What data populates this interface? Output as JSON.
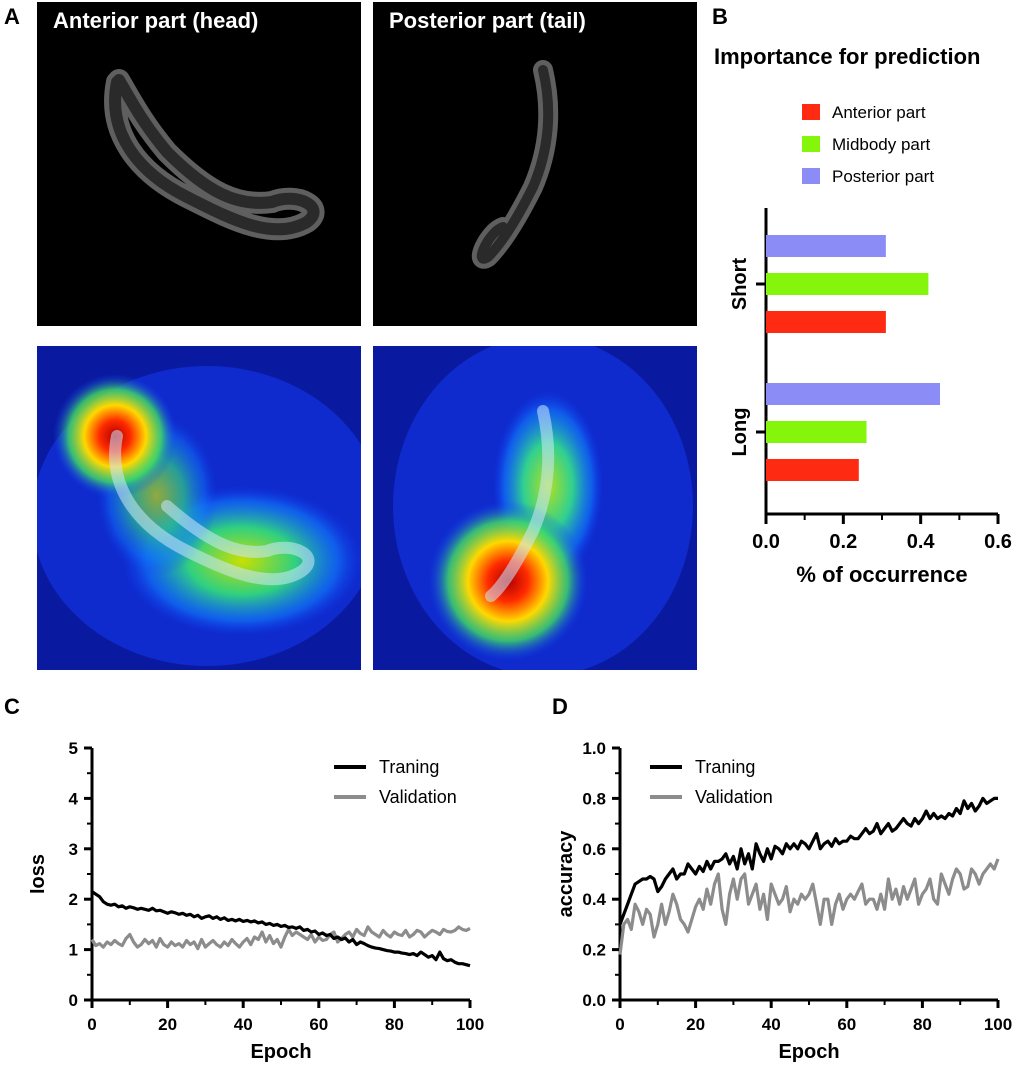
{
  "panels": {
    "a": "A",
    "b": "B",
    "c": "C",
    "d": "D"
  },
  "panel_a": {
    "title_left": "Anterior part (head)",
    "title_right": "Posterior part (tail)"
  },
  "colors": {
    "anterior": "#ff2a12",
    "midbody": "#86f50c",
    "posterior": "#8c8cf7",
    "training": "#000000",
    "validation": "#8c8c8c"
  },
  "chart_data": [
    {
      "id": "importance",
      "type": "bar",
      "orientation": "horizontal",
      "title": "Importance for prediction",
      "xlabel": "% of occurrence",
      "ylabel": "",
      "xlim": [
        0,
        0.6
      ],
      "xticks": [
        "0.0",
        "0.2",
        "0.4",
        "0.6"
      ],
      "xtick_values": [
        0,
        0.2,
        0.4,
        0.6
      ],
      "categories": [
        "Short",
        "Long"
      ],
      "series": [
        {
          "name": "Anterior part",
          "values": [
            0.31,
            0.24
          ]
        },
        {
          "name": "Midbody part",
          "values": [
            0.42,
            0.26
          ]
        },
        {
          "name": "Posterior part",
          "values": [
            0.31,
            0.45
          ]
        }
      ],
      "legend": "top"
    },
    {
      "id": "loss",
      "type": "line",
      "xlabel": "Epoch",
      "ylabel": "loss",
      "xlim": [
        0,
        100
      ],
      "ylim": [
        0,
        5
      ],
      "xticks": [
        "0",
        "20",
        "40",
        "60",
        "80",
        "100"
      ],
      "yticks": [
        "0",
        "1",
        "2",
        "3",
        "4",
        "5"
      ],
      "legend": "top-right",
      "series": [
        {
          "name": "Traning",
          "values": [
            2.15,
            2.1,
            2.05,
            1.95,
            1.9,
            1.88,
            1.9,
            1.85,
            1.87,
            1.82,
            1.85,
            1.83,
            1.8,
            1.82,
            1.8,
            1.78,
            1.82,
            1.77,
            1.78,
            1.75,
            1.72,
            1.75,
            1.73,
            1.7,
            1.72,
            1.68,
            1.7,
            1.65,
            1.68,
            1.62,
            1.65,
            1.67,
            1.62,
            1.65,
            1.6,
            1.63,
            1.58,
            1.6,
            1.57,
            1.6,
            1.56,
            1.58,
            1.55,
            1.57,
            1.53,
            1.55,
            1.5,
            1.52,
            1.48,
            1.5,
            1.46,
            1.48,
            1.44,
            1.45,
            1.42,
            1.45,
            1.38,
            1.4,
            1.35,
            1.37,
            1.3,
            1.33,
            1.28,
            1.3,
            1.22,
            1.25,
            1.2,
            1.23,
            1.15,
            1.2,
            1.1,
            1.15,
            1.12,
            1.08,
            1.05,
            1.03,
            1.02,
            1.0,
            0.98,
            0.97,
            0.95,
            0.95,
            0.93,
            0.92,
            0.9,
            0.92,
            0.88,
            0.95,
            0.9,
            0.85,
            0.88,
            0.8,
            0.95,
            0.82,
            0.78,
            0.8,
            0.75,
            0.72,
            0.72,
            0.7,
            0.68
          ]
        },
        {
          "name": "Validation",
          "values": [
            1.2,
            1.08,
            1.12,
            1.05,
            1.15,
            1.1,
            1.18,
            1.12,
            1.08,
            1.22,
            1.3,
            1.15,
            1.05,
            1.1,
            1.2,
            1.12,
            1.18,
            1.05,
            1.22,
            1.1,
            1.05,
            1.15,
            1.08,
            1.12,
            1.05,
            1.18,
            1.1,
            1.15,
            1.02,
            1.2,
            1.05,
            1.12,
            1.18,
            1.1,
            1.05,
            1.15,
            1.08,
            1.2,
            1.12,
            1.05,
            1.15,
            1.22,
            1.1,
            1.25,
            1.2,
            1.35,
            1.15,
            1.28,
            1.12,
            1.2,
            1.05,
            1.25,
            1.4,
            1.28,
            1.35,
            1.3,
            1.25,
            1.2,
            1.3,
            1.15,
            1.25,
            1.18,
            1.2,
            1.3,
            1.35,
            1.15,
            1.22,
            1.3,
            1.35,
            1.25,
            1.4,
            1.32,
            1.28,
            1.45,
            1.35,
            1.3,
            1.25,
            1.38,
            1.3,
            1.25,
            1.35,
            1.3,
            1.28,
            1.38,
            1.25,
            1.3,
            1.38,
            1.35,
            1.25,
            1.32,
            1.38,
            1.35,
            1.3,
            1.4,
            1.36,
            1.35,
            1.38,
            1.45,
            1.4,
            1.38,
            1.42
          ]
        }
      ]
    },
    {
      "id": "accuracy",
      "type": "line",
      "xlabel": "Epoch",
      "ylabel": "accuracy",
      "xlim": [
        0,
        100
      ],
      "ylim": [
        0,
        1.0
      ],
      "xticks": [
        "0",
        "20",
        "40",
        "60",
        "80",
        "100"
      ],
      "yticks": [
        "0.0",
        "0.2",
        "0.4",
        "0.6",
        "0.8",
        "1.0"
      ],
      "legend": "top-left",
      "series": [
        {
          "name": "Traning",
          "values": [
            0.3,
            0.34,
            0.38,
            0.42,
            0.46,
            0.47,
            0.48,
            0.48,
            0.49,
            0.48,
            0.43,
            0.45,
            0.48,
            0.5,
            0.52,
            0.48,
            0.5,
            0.5,
            0.54,
            0.52,
            0.5,
            0.53,
            0.51,
            0.55,
            0.52,
            0.55,
            0.55,
            0.56,
            0.58,
            0.54,
            0.57,
            0.52,
            0.6,
            0.54,
            0.58,
            0.52,
            0.62,
            0.58,
            0.55,
            0.6,
            0.56,
            0.61,
            0.6,
            0.58,
            0.62,
            0.6,
            0.62,
            0.6,
            0.63,
            0.62,
            0.6,
            0.63,
            0.66,
            0.6,
            0.62,
            0.63,
            0.61,
            0.64,
            0.62,
            0.63,
            0.63,
            0.65,
            0.64,
            0.64,
            0.66,
            0.68,
            0.66,
            0.67,
            0.7,
            0.66,
            0.68,
            0.7,
            0.67,
            0.68,
            0.7,
            0.72,
            0.7,
            0.69,
            0.72,
            0.7,
            0.72,
            0.75,
            0.72,
            0.74,
            0.72,
            0.73,
            0.72,
            0.74,
            0.73,
            0.76,
            0.74,
            0.79,
            0.76,
            0.78,
            0.75,
            0.77,
            0.8,
            0.78,
            0.79,
            0.8,
            0.8
          ]
        },
        {
          "name": "Validation",
          "values": [
            0.18,
            0.3,
            0.32,
            0.28,
            0.38,
            0.35,
            0.3,
            0.36,
            0.34,
            0.25,
            0.3,
            0.38,
            0.3,
            0.35,
            0.42,
            0.38,
            0.32,
            0.3,
            0.27,
            0.32,
            0.37,
            0.4,
            0.36,
            0.44,
            0.38,
            0.46,
            0.5,
            0.36,
            0.3,
            0.42,
            0.48,
            0.4,
            0.48,
            0.5,
            0.38,
            0.42,
            0.46,
            0.36,
            0.42,
            0.32,
            0.46,
            0.42,
            0.38,
            0.4,
            0.45,
            0.35,
            0.4,
            0.38,
            0.42,
            0.4,
            0.42,
            0.46,
            0.38,
            0.3,
            0.4,
            0.4,
            0.3,
            0.38,
            0.42,
            0.36,
            0.4,
            0.42,
            0.4,
            0.43,
            0.46,
            0.38,
            0.4,
            0.4,
            0.36,
            0.42,
            0.36,
            0.48,
            0.4,
            0.44,
            0.38,
            0.45,
            0.4,
            0.44,
            0.48,
            0.38,
            0.42,
            0.44,
            0.48,
            0.4,
            0.38,
            0.5,
            0.46,
            0.42,
            0.48,
            0.52,
            0.5,
            0.44,
            0.45,
            0.52,
            0.5,
            0.46,
            0.5,
            0.52,
            0.54,
            0.52,
            0.56
          ]
        }
      ]
    }
  ]
}
